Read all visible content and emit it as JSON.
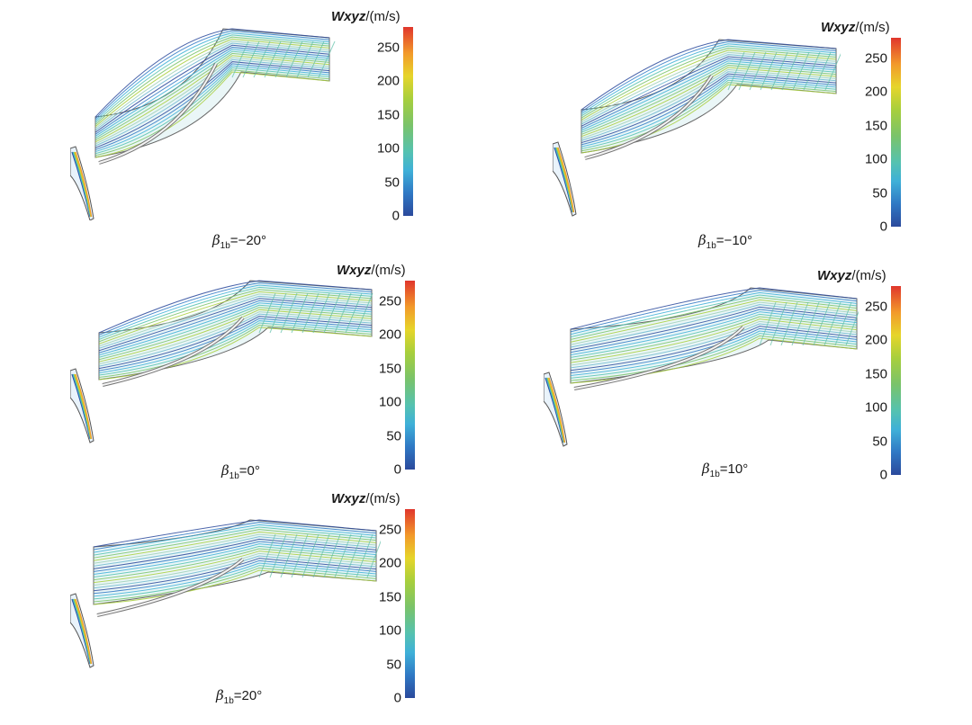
{
  "colorbar": {
    "label_symbol": "Wxyz",
    "label_unit": "/(m/s)",
    "ticks": [
      "250",
      "200",
      "150",
      "100",
      "50",
      "0"
    ],
    "tick_values": [
      250,
      200,
      150,
      100,
      50,
      0
    ],
    "max": 280,
    "colors": [
      "#2b4a9c",
      "#3fb0d8",
      "#7ac36a",
      "#e6d52a",
      "#e0362c"
    ]
  },
  "panels": [
    {
      "caption_prefix": "β",
      "caption_sub": "1b",
      "caption_value": "=−20°"
    },
    {
      "caption_prefix": "β",
      "caption_sub": "1b",
      "caption_value": "=−10°"
    },
    {
      "caption_prefix": "β",
      "caption_sub": "1b",
      "caption_value": "=0°"
    },
    {
      "caption_prefix": "β",
      "caption_sub": "1b",
      "caption_value": "=10°"
    },
    {
      "caption_prefix": "β",
      "caption_sub": "1b",
      "caption_value": "=20°"
    }
  ]
}
